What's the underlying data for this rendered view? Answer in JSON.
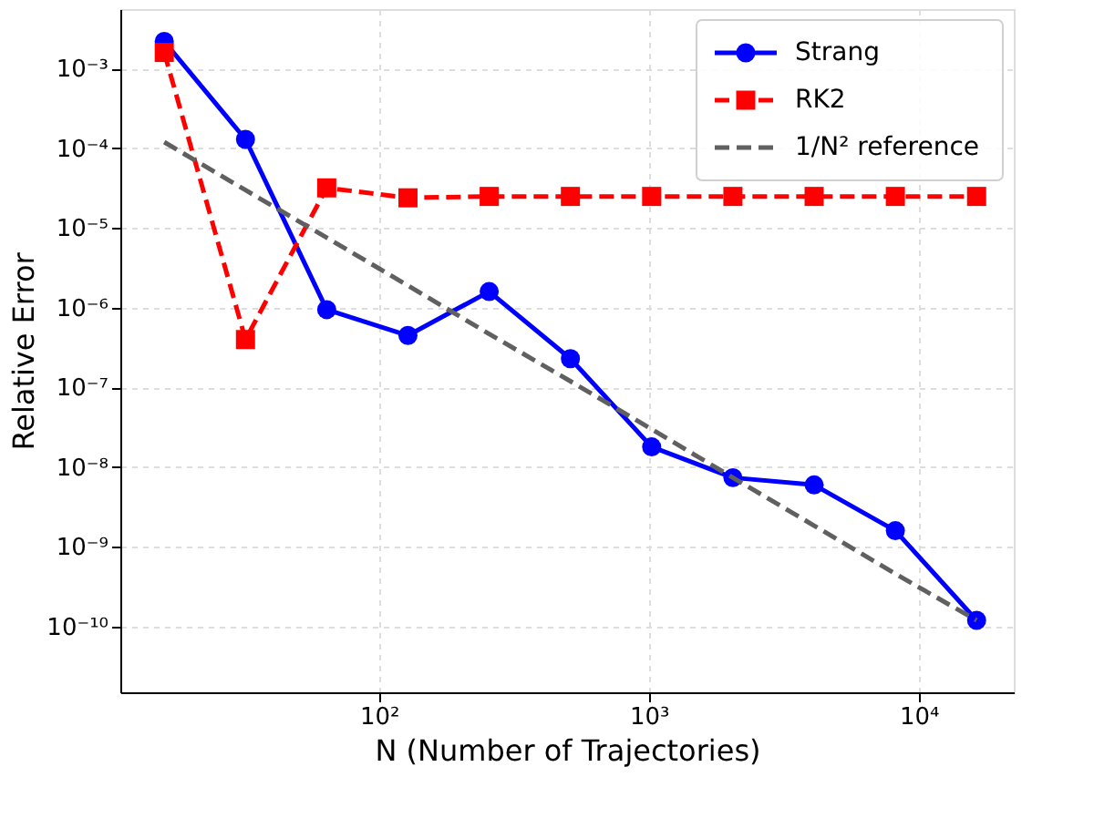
{
  "chart_data": {
    "type": "line",
    "xlabel": "N (Number of Trajectories)",
    "ylabel": "Relative Error",
    "x": [
      16,
      32,
      64,
      128,
      256,
      512,
      1024,
      2048,
      4096,
      8192,
      16384
    ],
    "series": [
      {
        "name": "Strang",
        "color": "#0000ff",
        "marker": "circle",
        "line_style": "solid",
        "values": [
          0.0022,
          0.00013,
          9.5e-07,
          4.5e-07,
          1.6e-06,
          2.3e-07,
          1.8e-08,
          7.4e-09,
          6e-09,
          1.6e-09,
          1.2e-10
        ]
      },
      {
        "name": "RK2",
        "color": "#ff0000",
        "marker": "square",
        "line_style": "dashed",
        "values": [
          0.0016,
          4e-07,
          3.2e-05,
          2.4e-05,
          2.5e-05,
          2.5e-05,
          2.5e-05,
          2.5e-05,
          2.5e-05,
          2.5e-05,
          2.5e-05
        ]
      },
      {
        "name": "1/N² reference",
        "color": "#606060",
        "marker": "none",
        "line_style": "dashed",
        "values": [
          0.00012,
          3e-05,
          7.6e-06,
          1.9e-06,
          4.7e-07,
          1.2e-07,
          3e-08,
          7.4e-09,
          1.85e-09,
          4.6e-10,
          1.2e-10
        ]
      }
    ],
    "log": "xy",
    "xlim": [
      11,
      22500
    ],
    "ylim": [
      1.5e-11,
      0.0056
    ],
    "xticks": [
      {
        "value": 100,
        "label": "10²"
      },
      {
        "value": 1000,
        "label": "10³"
      },
      {
        "value": 10000,
        "label": "10⁴"
      }
    ],
    "yticks": [
      {
        "value": 1e-10,
        "label": "10⁻¹⁰"
      },
      {
        "value": 1e-09,
        "label": "10⁻⁹"
      },
      {
        "value": 1e-08,
        "label": "10⁻⁸"
      },
      {
        "value": 1e-07,
        "label": "10⁻⁷"
      },
      {
        "value": 1e-06,
        "label": "10⁻⁶"
      },
      {
        "value": 1e-05,
        "label": "10⁻⁵"
      },
      {
        "value": 0.0001,
        "label": "10⁻⁴"
      },
      {
        "value": 0.001,
        "label": "10⁻³"
      }
    ],
    "grid": true,
    "legend": "top right"
  }
}
